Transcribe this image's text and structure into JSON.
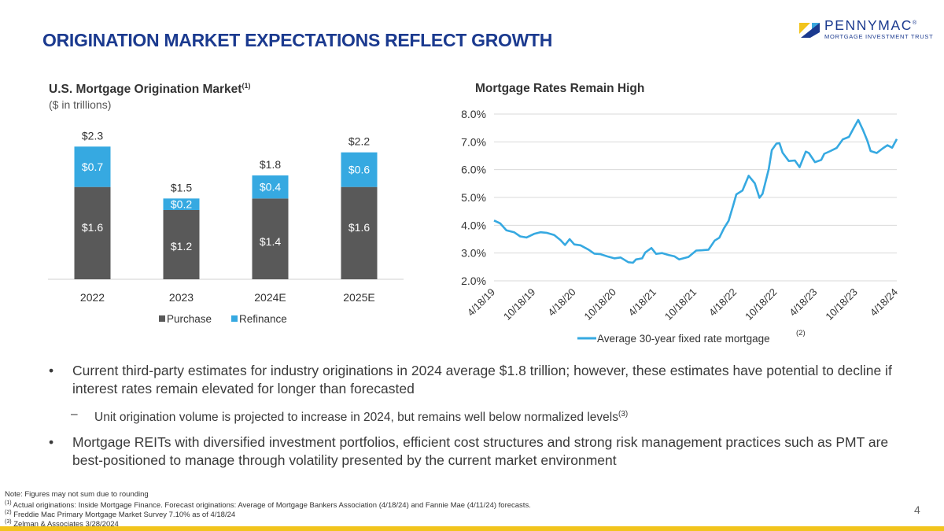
{
  "slide": {
    "title": "ORIGINATION MARKET EXPECTATIONS REFLECT GROWTH",
    "page_number": "4"
  },
  "logo": {
    "word": "PENNYMAC",
    "reg": "®",
    "sub": "MORTGAGE INVESTMENT TRUST",
    "colors": {
      "navy": "#1b3a8f",
      "yellow": "#f2c41c",
      "blue": "#3aa8de"
    }
  },
  "left_chart": {
    "title": "U.S. Mortgage  Origination Market",
    "title_ref": "(1)",
    "subtitle": "($ in trillions)"
  },
  "right_chart": {
    "title": "Mortgage  Rates Remain High"
  },
  "chart_data": [
    {
      "type": "bar",
      "stacked": true,
      "categories": [
        "2022",
        "2023",
        "2024E",
        "2025E"
      ],
      "series": [
        {
          "name": "Purchase",
          "values": [
            1.6,
            1.2,
            1.4,
            1.6
          ],
          "labels": [
            "$1.6",
            "$1.2",
            "$1.4",
            "$1.6"
          ],
          "color": "#595959"
        },
        {
          "name": "Refinance",
          "values": [
            0.7,
            0.2,
            0.4,
            0.6
          ],
          "labels": [
            "$0.7",
            "$0.2",
            "$0.4",
            "$0.6"
          ],
          "color": "#36a9e1"
        }
      ],
      "totals": [
        "$2.3",
        "$1.5",
        "$1.8",
        "$2.2"
      ],
      "ylim": [
        0,
        2.6
      ],
      "grid": false,
      "legend": "bottom"
    },
    {
      "type": "line",
      "series": [
        {
          "name": "Average 30-year fixed rate mortgage",
          "name_ref": "(2)",
          "color": "#36a9e1",
          "x": [
            "2019-04-18",
            "2019-05-16",
            "2019-06-13",
            "2019-07-18",
            "2019-08-15",
            "2019-09-12",
            "2019-10-17",
            "2019-11-14",
            "2019-12-12",
            "2020-01-16",
            "2020-02-13",
            "2020-03-05",
            "2020-03-26",
            "2020-04-16",
            "2020-05-14",
            "2020-06-18",
            "2020-07-16",
            "2020-08-13",
            "2020-09-17",
            "2020-10-15",
            "2020-11-12",
            "2020-12-17",
            "2021-01-07",
            "2021-01-21",
            "2021-02-18",
            "2021-03-04",
            "2021-04-01",
            "2021-04-22",
            "2021-05-20",
            "2021-06-17",
            "2021-07-15",
            "2021-08-05",
            "2021-09-16",
            "2021-10-21",
            "2021-11-18",
            "2021-12-16",
            "2022-01-13",
            "2022-02-03",
            "2022-02-24",
            "2022-03-17",
            "2022-04-07",
            "2022-04-21",
            "2022-05-19",
            "2022-06-16",
            "2022-07-14",
            "2022-08-04",
            "2022-08-18",
            "2022-09-15",
            "2022-09-29",
            "2022-10-20",
            "2022-11-03",
            "2022-11-17",
            "2022-12-15",
            "2023-01-12",
            "2023-02-02",
            "2023-03-02",
            "2023-03-16",
            "2023-04-13",
            "2023-05-11",
            "2023-05-25",
            "2023-06-22",
            "2023-07-20",
            "2023-08-17",
            "2023-09-14",
            "2023-10-05",
            "2023-10-26",
            "2023-11-16",
            "2023-12-07",
            "2023-12-21",
            "2024-01-18",
            "2024-02-15",
            "2024-03-07",
            "2024-03-28",
            "2024-04-18"
          ],
          "y": [
            4.17,
            4.07,
            3.82,
            3.75,
            3.6,
            3.56,
            3.69,
            3.75,
            3.73,
            3.65,
            3.47,
            3.29,
            3.5,
            3.31,
            3.28,
            3.13,
            2.98,
            2.96,
            2.87,
            2.81,
            2.84,
            2.67,
            2.65,
            2.77,
            2.81,
            3.02,
            3.18,
            2.97,
            3.0,
            2.93,
            2.88,
            2.77,
            2.86,
            3.09,
            3.1,
            3.12,
            3.45,
            3.55,
            3.89,
            4.16,
            4.72,
            5.11,
            5.25,
            5.78,
            5.51,
            4.99,
            5.13,
            6.02,
            6.7,
            6.94,
            6.95,
            6.61,
            6.31,
            6.33,
            6.09,
            6.65,
            6.6,
            6.27,
            6.35,
            6.57,
            6.67,
            6.78,
            7.09,
            7.18,
            7.49,
            7.79,
            7.44,
            7.03,
            6.67,
            6.6,
            6.77,
            6.88,
            6.79,
            7.1
          ],
          "tick_labels": [
            "4/18/19",
            "10/18/19",
            "4/18/20",
            "10/18/20",
            "4/18/21",
            "10/18/21",
            "4/18/22",
            "10/18/22",
            "4/18/23",
            "10/18/23",
            "4/18/24"
          ],
          "tick_dates": [
            "2019-04-18",
            "2019-10-18",
            "2020-04-18",
            "2020-10-18",
            "2021-04-18",
            "2021-10-18",
            "2022-04-18",
            "2022-10-18",
            "2023-04-18",
            "2023-10-18",
            "2024-04-18"
          ]
        }
      ],
      "y_ticks": [
        "2.0%",
        "3.0%",
        "4.0%",
        "5.0%",
        "6.0%",
        "7.0%",
        "8.0%"
      ],
      "ylim": [
        2.0,
        8.0
      ],
      "grid": true,
      "legend": "bottom"
    }
  ],
  "bullets": [
    {
      "text": "Current third-party estimates for industry originations in 2024 average $1.8 trillion; however, these estimates have potential to decline if interest rates remain elevated for longer than forecasted"
    },
    {
      "text": "Unit origination volume is projected to increase in 2024, but remains well below normalized levels",
      "ref": "(3)",
      "sub": true
    },
    {
      "text": "Mortgage REITs with diversified investment portfolios, efficient cost structures and strong risk management practices such as PMT are best-positioned  to manage through volatility  presented by the current market environment"
    }
  ],
  "bullet_marks": {
    "main": "•",
    "sub": "–"
  },
  "footnotes": {
    "note": "Note: Figures may not sum due to rounding",
    "items": [
      {
        "ref": "(1)",
        "text": " Actual originations: Inside Mortgage Finance. Forecast originations: Average of Mortgage Bankers Association (4/18/24) and Fannie Mae (4/11/24) forecasts."
      },
      {
        "ref": "(2)",
        "text": " Freddie Mac Primary  Mortgage Market Survey 7.10% as of 4/18/24"
      },
      {
        "ref": "(3)",
        "text": " Zelman & Associates 3/28/2024"
      }
    ]
  }
}
